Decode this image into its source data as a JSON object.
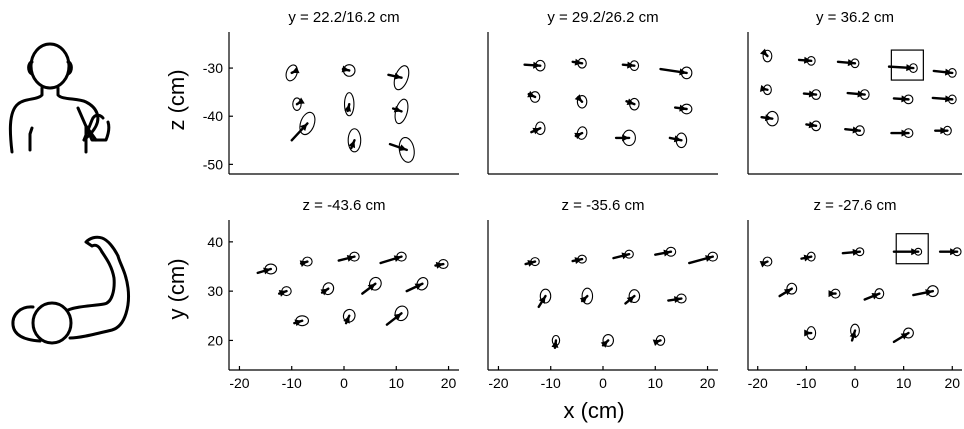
{
  "figure": {
    "row_ylabels": [
      "z (cm)",
      "y (cm)"
    ],
    "shared_xlabel": "x (cm)",
    "icons": [
      "front-view-body-icon",
      "top-view-body-icon"
    ]
  },
  "chart_data": [
    {
      "type": "scatter",
      "title": "y = 22.2/16.2 cm",
      "xlabel": "",
      "ylabel": "z (cm)",
      "xlim": [
        -22,
        22
      ],
      "ylim": [
        -52,
        -25
      ],
      "x_ticks": [],
      "y_ticks": [
        -30,
        -40,
        -50
      ],
      "grid": false,
      "points": [
        {
          "x": -10,
          "y": -31,
          "rx": 1.0,
          "ry": 1.7,
          "angle": 20,
          "dx": 0.8,
          "dy": 0.4
        },
        {
          "x": 1,
          "y": -30.5,
          "rx": 1.1,
          "ry": 1.2,
          "angle": 0,
          "dx": -1.2,
          "dy": 0.3
        },
        {
          "x": 11,
          "y": -32,
          "rx": 1.2,
          "ry": 2.6,
          "angle": 20,
          "dx": -2.5,
          "dy": 0.6
        },
        {
          "x": -9,
          "y": -37.5,
          "rx": 0.8,
          "ry": 1.3,
          "angle": 0,
          "dx": 0.3,
          "dy": 0.2
        },
        {
          "x": 1,
          "y": -37.5,
          "rx": 0.9,
          "ry": 2.4,
          "angle": 0,
          "dx": -0.3,
          "dy": -1.4
        },
        {
          "x": 11,
          "y": -39,
          "rx": 1.1,
          "ry": 2.6,
          "angle": 15,
          "dx": -1.6,
          "dy": 0.6
        },
        {
          "x": -7,
          "y": -41.5,
          "rx": 1.3,
          "ry": 2.4,
          "angle": 20,
          "dx": -3.0,
          "dy": -3.5
        },
        {
          "x": 2,
          "y": -45,
          "rx": 1.2,
          "ry": 2.4,
          "angle": 0,
          "dx": -0.6,
          "dy": -1.6
        },
        {
          "x": 12,
          "y": -47,
          "rx": 1.4,
          "ry": 2.6,
          "angle": -10,
          "dx": -3.2,
          "dy": 1.2
        }
      ]
    },
    {
      "type": "scatter",
      "title": "y = 29.2/26.2 cm",
      "xlabel": "",
      "ylabel": "",
      "xlim": [
        -22,
        22
      ],
      "ylim": [
        -52,
        -25
      ],
      "x_ticks": [],
      "y_ticks": [],
      "grid": false,
      "points": [
        {
          "x": -12,
          "y": -29.5,
          "rx": 0.9,
          "ry": 1.1,
          "angle": 0,
          "dx": -3.0,
          "dy": 0.2
        },
        {
          "x": -4,
          "y": -29,
          "rx": 0.8,
          "ry": 1.0,
          "angle": 0,
          "dx": -1.8,
          "dy": 0.3
        },
        {
          "x": 6,
          "y": -29.5,
          "rx": 0.8,
          "ry": 1.0,
          "angle": 0,
          "dx": -2.2,
          "dy": 0.2
        },
        {
          "x": 16,
          "y": -31,
          "rx": 1.0,
          "ry": 1.2,
          "angle": 0,
          "dx": -5.0,
          "dy": 0.8
        },
        {
          "x": -13,
          "y": -36,
          "rx": 0.9,
          "ry": 1.1,
          "angle": 0,
          "dx": -1.2,
          "dy": 0.6
        },
        {
          "x": -4,
          "y": -37,
          "rx": 0.9,
          "ry": 1.3,
          "angle": 0,
          "dx": -0.8,
          "dy": 0.9
        },
        {
          "x": 6,
          "y": -37.5,
          "rx": 0.9,
          "ry": 1.2,
          "angle": 0,
          "dx": -1.5,
          "dy": 0.6
        },
        {
          "x": 16,
          "y": -38.5,
          "rx": 1.0,
          "ry": 1.0,
          "angle": 0,
          "dx": -2.2,
          "dy": 0.3
        },
        {
          "x": -12,
          "y": -42.5,
          "rx": 0.9,
          "ry": 1.3,
          "angle": 0,
          "dx": -1.7,
          "dy": -0.8
        },
        {
          "x": -4,
          "y": -43.5,
          "rx": 0.9,
          "ry": 1.3,
          "angle": 10,
          "dx": -1.2,
          "dy": -0.6
        },
        {
          "x": 5,
          "y": -44.5,
          "rx": 1.2,
          "ry": 1.6,
          "angle": 0,
          "dx": -2.5,
          "dy": 0.0
        },
        {
          "x": 15,
          "y": -45,
          "rx": 1.0,
          "ry": 1.5,
          "angle": 0,
          "dx": -2.2,
          "dy": 0.5
        }
      ]
    },
    {
      "type": "scatter",
      "title": "y = 36.2 cm",
      "xlabel": "",
      "ylabel": "",
      "xlim": [
        -22,
        22
      ],
      "ylim": [
        -52,
        -25
      ],
      "x_ticks": [],
      "y_ticks": [],
      "grid": false,
      "highlight": {
        "x": 12,
        "y": -30
      },
      "points": [
        {
          "x": -18,
          "y": -27.5,
          "rx": 0.9,
          "ry": 1.2,
          "angle": 0,
          "dx": -0.5,
          "dy": 0.5
        },
        {
          "x": -9,
          "y": -28.5,
          "rx": 0.8,
          "ry": 0.9,
          "angle": 0,
          "dx": -2.5,
          "dy": 0.2
        },
        {
          "x": 0,
          "y": -29,
          "rx": 0.8,
          "ry": 0.9,
          "angle": 0,
          "dx": -3.5,
          "dy": 0.3
        },
        {
          "x": 12,
          "y": -30,
          "rx": 0.8,
          "ry": 0.9,
          "angle": 0,
          "dx": -5.0,
          "dy": 0.3
        },
        {
          "x": 20,
          "y": -31,
          "rx": 0.8,
          "ry": 0.9,
          "angle": 0,
          "dx": -3.8,
          "dy": 0.4
        },
        {
          "x": -18,
          "y": -34.5,
          "rx": 0.8,
          "ry": 1.0,
          "angle": 0,
          "dx": -1.0,
          "dy": 0.2
        },
        {
          "x": -8,
          "y": -35.5,
          "rx": 0.9,
          "ry": 1.0,
          "angle": 0,
          "dx": -2.5,
          "dy": 0.2
        },
        {
          "x": 2,
          "y": -35.5,
          "rx": 0.9,
          "ry": 1.0,
          "angle": 0,
          "dx": -3.5,
          "dy": 0.3
        },
        {
          "x": 11,
          "y": -36.5,
          "rx": 0.9,
          "ry": 0.9,
          "angle": 0,
          "dx": -3.0,
          "dy": 0.2
        },
        {
          "x": 20,
          "y": -36.5,
          "rx": 0.8,
          "ry": 0.9,
          "angle": 0,
          "dx": -4.0,
          "dy": 0.3
        },
        {
          "x": -17,
          "y": -40.5,
          "rx": 1.2,
          "ry": 1.5,
          "angle": 0,
          "dx": -2.2,
          "dy": 0.3
        },
        {
          "x": -8,
          "y": -42,
          "rx": 0.9,
          "ry": 1.0,
          "angle": 0,
          "dx": -2.0,
          "dy": 0.3
        },
        {
          "x": 1,
          "y": -43,
          "rx": 0.9,
          "ry": 1.0,
          "angle": 0,
          "dx": -3.0,
          "dy": 0.3
        },
        {
          "x": 11,
          "y": -43.5,
          "rx": 0.9,
          "ry": 0.9,
          "angle": 0,
          "dx": -3.5,
          "dy": 0.0
        },
        {
          "x": 19,
          "y": -43,
          "rx": 0.8,
          "ry": 0.9,
          "angle": 0,
          "dx": -2.5,
          "dy": 0.0
        }
      ]
    },
    {
      "type": "scatter",
      "title": "z = -43.6 cm",
      "xlabel": "",
      "ylabel": "y (cm)",
      "xlim": [
        -22,
        22
      ],
      "ylim": [
        14,
        42
      ],
      "x_ticks": [
        -20,
        -10,
        0,
        10,
        20
      ],
      "y_ticks": [
        20,
        30,
        40
      ],
      "grid": false,
      "points": [
        {
          "x": -14,
          "y": 34.5,
          "rx": 1.1,
          "ry": 1.0,
          "angle": 0,
          "dx": -2.5,
          "dy": -0.8
        },
        {
          "x": -7,
          "y": 36,
          "rx": 0.9,
          "ry": 0.9,
          "angle": 0,
          "dx": -1.2,
          "dy": -0.4
        },
        {
          "x": 2,
          "y": 37,
          "rx": 0.9,
          "ry": 0.9,
          "angle": 0,
          "dx": -3.0,
          "dy": -0.8
        },
        {
          "x": 11,
          "y": 37,
          "rx": 0.9,
          "ry": 0.9,
          "angle": 0,
          "dx": -4.0,
          "dy": -1.3
        },
        {
          "x": 19,
          "y": 35.5,
          "rx": 0.9,
          "ry": 0.9,
          "angle": 0,
          "dx": -1.5,
          "dy": -0.3
        },
        {
          "x": -11,
          "y": 30,
          "rx": 0.9,
          "ry": 0.9,
          "angle": 0,
          "dx": -1.4,
          "dy": -0.5
        },
        {
          "x": -3,
          "y": 30.5,
          "rx": 1.0,
          "ry": 1.2,
          "angle": 20,
          "dx": -1.2,
          "dy": -0.8
        },
        {
          "x": 6,
          "y": 31.5,
          "rx": 1.1,
          "ry": 1.3,
          "angle": 20,
          "dx": -2.5,
          "dy": -2.0
        },
        {
          "x": 15,
          "y": 31.5,
          "rx": 1.0,
          "ry": 1.3,
          "angle": 25,
          "dx": -3.0,
          "dy": -1.5
        },
        {
          "x": -8,
          "y": 24,
          "rx": 1.2,
          "ry": 1.0,
          "angle": 0,
          "dx": -1.5,
          "dy": -0.5
        },
        {
          "x": 1,
          "y": 25,
          "rx": 1.1,
          "ry": 1.3,
          "angle": 15,
          "dx": -0.6,
          "dy": -1.5
        },
        {
          "x": 11,
          "y": 25.5,
          "rx": 1.2,
          "ry": 1.5,
          "angle": 20,
          "dx": -2.8,
          "dy": -2.3
        }
      ]
    },
    {
      "type": "scatter",
      "title": "z = -35.6 cm",
      "xlabel": "",
      "ylabel": "",
      "xlim": [
        -22,
        22
      ],
      "ylim": [
        14,
        42
      ],
      "x_ticks": [
        -20,
        -10,
        0,
        10,
        20
      ],
      "y_ticks": [],
      "grid": false,
      "points": [
        {
          "x": -13,
          "y": 36,
          "rx": 0.8,
          "ry": 0.8,
          "angle": 0,
          "dx": -1.8,
          "dy": -0.5
        },
        {
          "x": -4,
          "y": 36.5,
          "rx": 0.8,
          "ry": 0.8,
          "angle": 0,
          "dx": -1.8,
          "dy": -0.4
        },
        {
          "x": 5,
          "y": 37.5,
          "rx": 0.8,
          "ry": 0.8,
          "angle": 0,
          "dx": -3.0,
          "dy": -0.8
        },
        {
          "x": 13,
          "y": 38,
          "rx": 0.9,
          "ry": 0.9,
          "angle": 0,
          "dx": -3.0,
          "dy": -0.6
        },
        {
          "x": 21,
          "y": 37,
          "rx": 0.9,
          "ry": 0.9,
          "angle": 0,
          "dx": -4.5,
          "dy": -1.3
        },
        {
          "x": -11,
          "y": 29,
          "rx": 1.0,
          "ry": 1.4,
          "angle": 0,
          "dx": -1.3,
          "dy": -2.2
        },
        {
          "x": -3,
          "y": 29,
          "rx": 1.0,
          "ry": 1.6,
          "angle": 0,
          "dx": -1.0,
          "dy": -1.0
        },
        {
          "x": 6,
          "y": 29,
          "rx": 1.0,
          "ry": 1.3,
          "angle": 0,
          "dx": -1.7,
          "dy": -1.5
        },
        {
          "x": 15,
          "y": 28.5,
          "rx": 0.9,
          "ry": 0.9,
          "angle": 0,
          "dx": -2.5,
          "dy": -0.4
        },
        {
          "x": -9,
          "y": 20,
          "rx": 0.7,
          "ry": 1.0,
          "angle": 0,
          "dx": -0.2,
          "dy": -1.5
        },
        {
          "x": 1,
          "y": 20,
          "rx": 1.0,
          "ry": 1.2,
          "angle": 0,
          "dx": -1.0,
          "dy": -1.0
        },
        {
          "x": 11,
          "y": 20,
          "rx": 0.8,
          "ry": 1.0,
          "angle": 0,
          "dx": -0.8,
          "dy": -0.3
        }
      ]
    },
    {
      "type": "scatter",
      "title": "z = -27.6 cm",
      "xlabel": "",
      "ylabel": "",
      "xlim": [
        -22,
        22
      ],
      "ylim": [
        14,
        42
      ],
      "x_ticks": [
        -20,
        -10,
        0,
        10,
        20
      ],
      "y_ticks": [],
      "grid": false,
      "highlight": {
        "x": 13,
        "y": 38
      },
      "points": [
        {
          "x": -18,
          "y": 36,
          "rx": 0.9,
          "ry": 0.9,
          "angle": 0,
          "dx": -1.0,
          "dy": -0.4
        },
        {
          "x": -9,
          "y": 37,
          "rx": 0.8,
          "ry": 0.9,
          "angle": 0,
          "dx": -2.0,
          "dy": -0.4
        },
        {
          "x": 1,
          "y": 38,
          "rx": 0.8,
          "ry": 0.8,
          "angle": 0,
          "dx": -3.5,
          "dy": -0.3
        },
        {
          "x": 13,
          "y": 38,
          "rx": 0.7,
          "ry": 0.7,
          "angle": 0,
          "dx": -5.0,
          "dy": 0.0
        },
        {
          "x": 21,
          "y": 38,
          "rx": 0.8,
          "ry": 0.8,
          "angle": 0,
          "dx": -3.5,
          "dy": 0.0
        },
        {
          "x": -13,
          "y": 30.5,
          "rx": 1.0,
          "ry": 1.1,
          "angle": 0,
          "dx": -2.5,
          "dy": -1.5
        },
        {
          "x": -4,
          "y": 29.5,
          "rx": 0.9,
          "ry": 0.9,
          "angle": 0,
          "dx": -1.2,
          "dy": 0.0
        },
        {
          "x": 5,
          "y": 29.5,
          "rx": 0.9,
          "ry": 1.0,
          "angle": 0,
          "dx": -3.0,
          "dy": -1.2
        },
        {
          "x": 16,
          "y": 30,
          "rx": 1.1,
          "ry": 1.1,
          "angle": 0,
          "dx": -4.0,
          "dy": -0.8
        },
        {
          "x": -9,
          "y": 21.5,
          "rx": 0.9,
          "ry": 1.3,
          "angle": 0,
          "dx": -0.7,
          "dy": 0.0
        },
        {
          "x": 0,
          "y": 22,
          "rx": 0.9,
          "ry": 1.3,
          "angle": 0,
          "dx": -0.6,
          "dy": -2.0
        },
        {
          "x": 11,
          "y": 21.5,
          "rx": 1.0,
          "ry": 1.0,
          "angle": 0,
          "dx": -3.0,
          "dy": -1.8
        }
      ]
    }
  ]
}
